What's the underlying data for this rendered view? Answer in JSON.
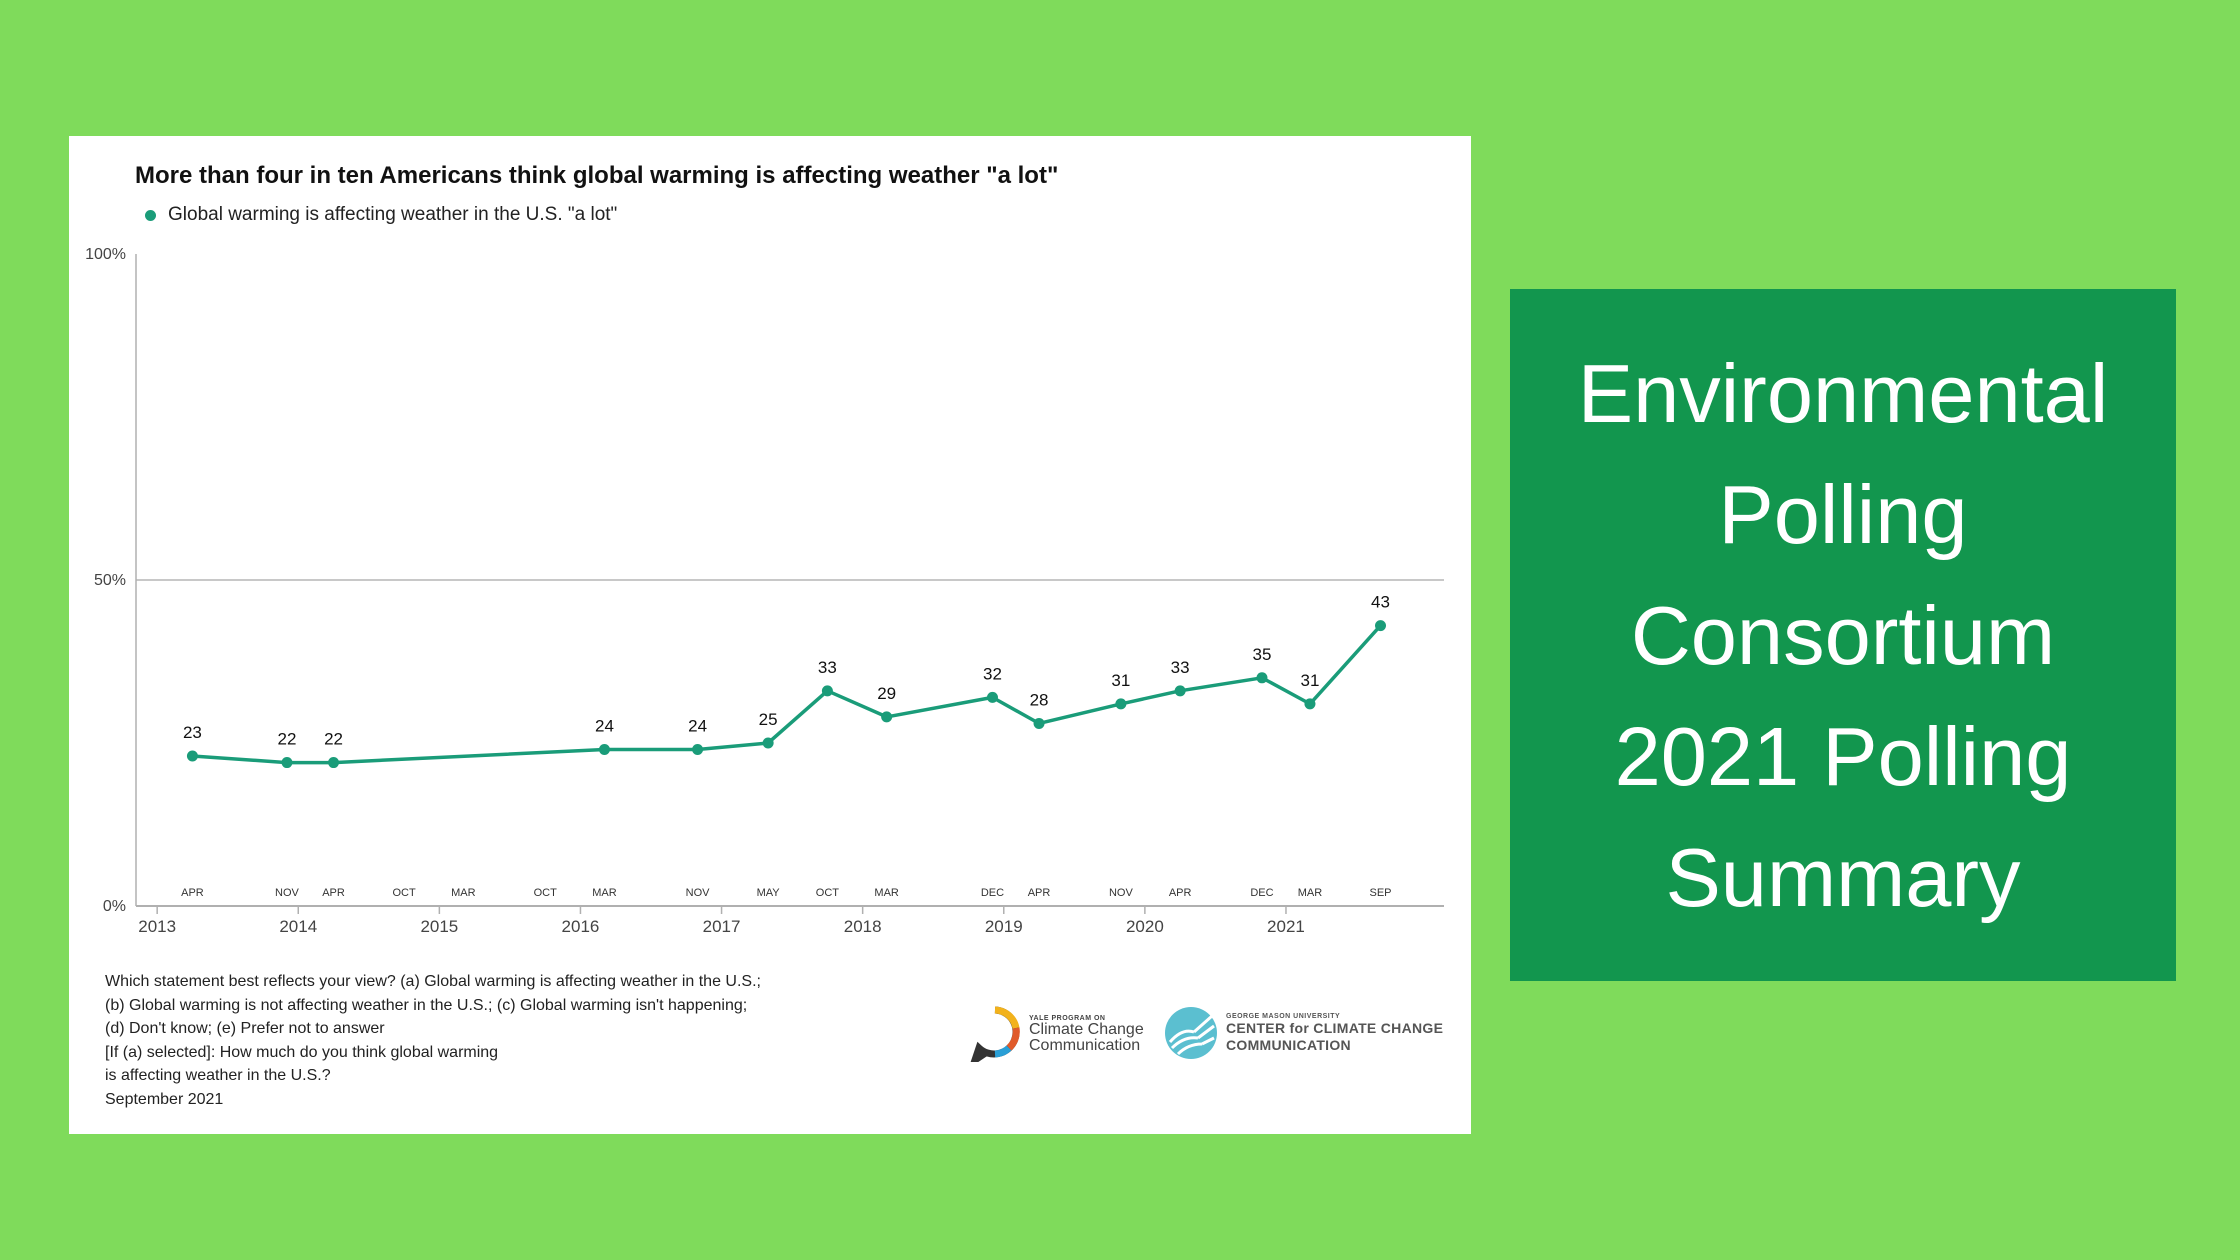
{
  "colors": {
    "background": "#7fdb5b",
    "panel": "#12964e",
    "series": "#1a9c79",
    "text": "#111111"
  },
  "chart_data": {
    "type": "line",
    "title": "More than four in ten Americans think global warming is affecting weather \"a lot\"",
    "series": [
      {
        "name": "Global warming is affecting weather in the U.S. \"a lot\"",
        "color": "#1a9c79",
        "points": [
          {
            "x": 2013.25,
            "y": 23
          },
          {
            "x": 2013.92,
            "y": 22
          },
          {
            "x": 2014.25,
            "y": 22
          },
          {
            "x": 2016.17,
            "y": 24
          },
          {
            "x": 2016.83,
            "y": 24
          },
          {
            "x": 2017.33,
            "y": 25
          },
          {
            "x": 2017.75,
            "y": 33
          },
          {
            "x": 2018.17,
            "y": 29
          },
          {
            "x": 2018.92,
            "y": 32
          },
          {
            "x": 2019.25,
            "y": 28
          },
          {
            "x": 2019.83,
            "y": 31
          },
          {
            "x": 2020.25,
            "y": 33
          },
          {
            "x": 2020.83,
            "y": 35
          },
          {
            "x": 2021.17,
            "y": 31
          },
          {
            "x": 2021.67,
            "y": 43
          }
        ]
      }
    ],
    "month_ticks": [
      {
        "x": 2013.25,
        "label": "APR"
      },
      {
        "x": 2013.92,
        "label": "NOV"
      },
      {
        "x": 2014.25,
        "label": "APR"
      },
      {
        "x": 2014.75,
        "label": "OCT"
      },
      {
        "x": 2015.17,
        "label": "MAR"
      },
      {
        "x": 2015.75,
        "label": "OCT"
      },
      {
        "x": 2016.17,
        "label": "MAR"
      },
      {
        "x": 2016.83,
        "label": "NOV"
      },
      {
        "x": 2017.33,
        "label": "MAY"
      },
      {
        "x": 2017.75,
        "label": "OCT"
      },
      {
        "x": 2018.17,
        "label": "MAR"
      },
      {
        "x": 2018.92,
        "label": "DEC"
      },
      {
        "x": 2019.25,
        "label": "APR"
      },
      {
        "x": 2019.83,
        "label": "NOV"
      },
      {
        "x": 2020.25,
        "label": "APR"
      },
      {
        "x": 2020.83,
        "label": "DEC"
      },
      {
        "x": 2021.17,
        "label": "MAR"
      },
      {
        "x": 2021.67,
        "label": "SEP"
      }
    ],
    "year_ticks": [
      "2013",
      "2014",
      "2015",
      "2016",
      "2017",
      "2018",
      "2019",
      "2020",
      "2021"
    ],
    "y_ticks": [
      {
        "value": 0,
        "label": "0%"
      },
      {
        "value": 50,
        "label": "50%"
      },
      {
        "value": 100,
        "label": "100%"
      }
    ],
    "xlim": [
      2012.85,
      2022.12
    ],
    "ylim": [
      0,
      100
    ],
    "xlabel": "",
    "ylabel": "",
    "legend_position": "top-left"
  },
  "footnote": [
    "Which statement best reflects your view? (a) Global warming is affecting weather in the U.S.;",
    "(b) Global warming is not affecting weather in the U.S.; (c) Global warming isn't happening;",
    "(d) Don't know; (e) Prefer not to answer",
    "[If (a) selected]: How much do you think global warming",
    "is affecting weather in the U.S.?",
    "September 2021"
  ],
  "logos": {
    "yale_small": "YALE PROGRAM ON",
    "yale_line1": "Climate Change",
    "yale_line2": "Communication",
    "gmu_small": "GEORGE MASON UNIVERSITY",
    "gmu_line1": "CENTER for CLIMATE CHANGE",
    "gmu_line2": "COMMUNICATION"
  },
  "title_panel": {
    "lines": [
      "Environmental",
      "Polling",
      "Consortium",
      "2021 Polling",
      "Summary"
    ]
  }
}
